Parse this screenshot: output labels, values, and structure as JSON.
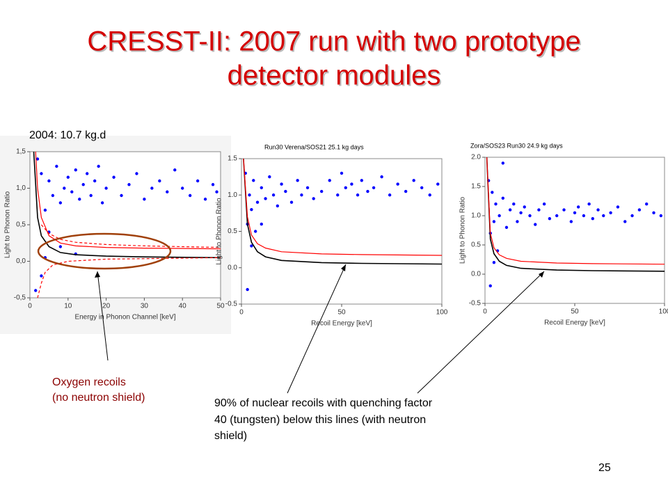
{
  "slide": {
    "title_lines": [
      "CRESST-II: 2007 run with two prototype",
      "detector modules"
    ],
    "oxygen_note": [
      "Oxygen recoils",
      "(no neutron shield)"
    ],
    "nuclear_note": [
      "90% of nuclear recoils with quenching factor",
      "40 (tungsten) below this lines (with neutron",
      "shield)"
    ],
    "page_number": "25"
  },
  "chart_data": [
    {
      "type": "scatter",
      "title": "2004: 10.7 kg.d",
      "xlabel": "Energy in Phonon Channel [keV]",
      "ylabel": "Light to Phonon Ratio",
      "xlim": [
        0,
        50
      ],
      "ylim": [
        -0.5,
        1.5
      ],
      "xticks": [
        0,
        10,
        20,
        30,
        40,
        50
      ],
      "yticks": [
        {
          "value": -0.5,
          "label": "-0,5"
        },
        {
          "value": 0,
          "label": "0,0"
        },
        {
          "value": 0.5,
          "label": "0,5"
        },
        {
          "value": 1,
          "label": "1,0"
        },
        {
          "value": 1.5,
          "label": "1,5"
        }
      ],
      "points": {
        "color": "#0000ff",
        "x": [
          3,
          4,
          5,
          6,
          7,
          8,
          9,
          10,
          11,
          12,
          13,
          14,
          15,
          16,
          17,
          18,
          19,
          20,
          22,
          24,
          26,
          28,
          30,
          32,
          34,
          36,
          38,
          40,
          42,
          44,
          46,
          48,
          49,
          5,
          8,
          12,
          4,
          3,
          2,
          1.5
        ],
        "y": [
          1.2,
          0.7,
          1.1,
          0.9,
          1.3,
          0.8,
          1.0,
          1.15,
          0.95,
          1.25,
          0.85,
          1.05,
          1.2,
          0.9,
          1.1,
          1.3,
          0.8,
          1.0,
          1.15,
          0.9,
          1.05,
          1.2,
          0.85,
          1.0,
          1.1,
          0.95,
          1.25,
          1.0,
          0.9,
          1.1,
          0.85,
          1.05,
          0.95,
          0.4,
          0.2,
          0.1,
          0.05,
          -0.2,
          1.4,
          -0.4
        ]
      },
      "curves": [
        {
          "color": "#000000",
          "dashed": false,
          "x": [
            1,
            2,
            3,
            5,
            8,
            12,
            20,
            30,
            50
          ],
          "values": [
            1.5,
            0.6,
            0.35,
            0.2,
            0.12,
            0.09,
            0.07,
            0.06,
            0.05
          ]
        },
        {
          "color": "#ff0000",
          "dashed": false,
          "x": [
            1.5,
            2,
            3,
            5,
            8,
            12,
            20,
            30,
            50
          ],
          "values": [
            1.5,
            1.0,
            0.6,
            0.35,
            0.25,
            0.21,
            0.19,
            0.18,
            0.17
          ]
        },
        {
          "color": "#ff0000",
          "dashed": true,
          "x": [
            3,
            5,
            8,
            12,
            20,
            30,
            50
          ],
          "values": [
            0.5,
            0.38,
            0.3,
            0.26,
            0.23,
            0.21,
            0.19
          ]
        },
        {
          "color": "#ff0000",
          "dashed": true,
          "x": [
            2,
            3,
            4,
            6,
            10,
            20,
            50
          ],
          "values": [
            -0.5,
            -0.3,
            -0.15,
            -0.05,
            0.0,
            0.03,
            0.05
          ]
        }
      ]
    },
    {
      "type": "scatter",
      "title": "Run30 Verena/SOS21 25.1 kg days",
      "xlabel": "Recoil Energy [keV]",
      "ylabel": "Light to Phonon Ratio",
      "xlim": [
        0,
        100
      ],
      "ylim": [
        -0.5,
        1.5
      ],
      "xticks": [
        0,
        50,
        100
      ],
      "yticks": [
        -0.5,
        {
          "value": 0,
          "label": "0.0"
        },
        0.5,
        {
          "value": 1,
          "label": "1.0"
        },
        1.5
      ],
      "points": {
        "color": "#0000ff",
        "x": [
          2,
          3,
          4,
          5,
          6,
          8,
          10,
          12,
          14,
          16,
          18,
          20,
          22,
          25,
          28,
          30,
          33,
          36,
          40,
          44,
          48,
          50,
          52,
          55,
          58,
          60,
          63,
          66,
          70,
          74,
          78,
          82,
          86,
          90,
          94,
          98,
          3,
          5,
          7,
          10
        ],
        "y": [
          1.3,
          0.6,
          1.0,
          0.8,
          1.2,
          0.9,
          1.1,
          0.95,
          1.25,
          1.0,
          0.85,
          1.15,
          1.05,
          0.9,
          1.2,
          1.0,
          1.1,
          0.95,
          1.05,
          1.2,
          1.0,
          1.3,
          1.1,
          1.15,
          1.0,
          1.2,
          1.05,
          1.1,
          1.25,
          1.0,
          1.15,
          1.05,
          1.2,
          1.1,
          1.0,
          1.15,
          -0.3,
          0.3,
          0.5,
          0.6
        ]
      },
      "curves": [
        {
          "color": "#000000",
          "dashed": false,
          "x": [
            1,
            3,
            5,
            8,
            12,
            20,
            40,
            60,
            100
          ],
          "values": [
            1.5,
            0.6,
            0.35,
            0.22,
            0.15,
            0.1,
            0.07,
            0.06,
            0.05
          ]
        },
        {
          "color": "#ff0000",
          "dashed": false,
          "x": [
            1,
            3,
            5,
            8,
            12,
            20,
            40,
            60,
            100
          ],
          "values": [
            1.5,
            0.7,
            0.45,
            0.33,
            0.27,
            0.22,
            0.19,
            0.18,
            0.17
          ]
        }
      ]
    },
    {
      "type": "scatter",
      "title": "Zora/SOS23 Run30 24.9 kg days",
      "xlabel": "Recoil Energy [keV]",
      "ylabel": "Light to Phonon Ratio",
      "xlim": [
        0,
        100
      ],
      "ylim": [
        -0.5,
        2.0
      ],
      "xticks": [
        0,
        50,
        100
      ],
      "yticks": [
        -0.5,
        {
          "value": 0,
          "label": "0.0"
        },
        0.5,
        {
          "value": 1,
          "label": "1.0"
        },
        1.5,
        {
          "value": 2,
          "label": "2.0"
        }
      ],
      "points": {
        "color": "#0000ff",
        "x": [
          2,
          3,
          4,
          5,
          6,
          8,
          10,
          12,
          14,
          16,
          18,
          20,
          22,
          25,
          28,
          30,
          33,
          36,
          40,
          44,
          48,
          50,
          52,
          55,
          58,
          60,
          63,
          66,
          70,
          74,
          78,
          82,
          86,
          90,
          94,
          98,
          3,
          5,
          7,
          10
        ],
        "y": [
          1.6,
          0.7,
          1.4,
          0.9,
          1.2,
          1.0,
          1.3,
          0.8,
          1.1,
          1.2,
          0.9,
          1.05,
          1.15,
          1.0,
          0.85,
          1.1,
          1.2,
          0.95,
          1.0,
          1.1,
          0.9,
          1.05,
          1.15,
          1.0,
          1.2,
          0.95,
          1.1,
          1.0,
          1.05,
          1.15,
          0.9,
          1.0,
          1.1,
          1.2,
          1.05,
          1.0,
          -0.2,
          0.2,
          0.4,
          1.9
        ]
      },
      "curves": [
        {
          "color": "#000000",
          "dashed": false,
          "x": [
            1,
            3,
            5,
            8,
            12,
            20,
            40,
            60,
            100
          ],
          "values": [
            2.0,
            0.6,
            0.35,
            0.22,
            0.15,
            0.1,
            0.07,
            0.06,
            0.05
          ]
        },
        {
          "color": "#ff0000",
          "dashed": false,
          "x": [
            1,
            3,
            5,
            8,
            12,
            20,
            40,
            60,
            100
          ],
          "values": [
            2.0,
            0.7,
            0.45,
            0.33,
            0.27,
            0.22,
            0.19,
            0.18,
            0.17
          ]
        }
      ]
    }
  ]
}
